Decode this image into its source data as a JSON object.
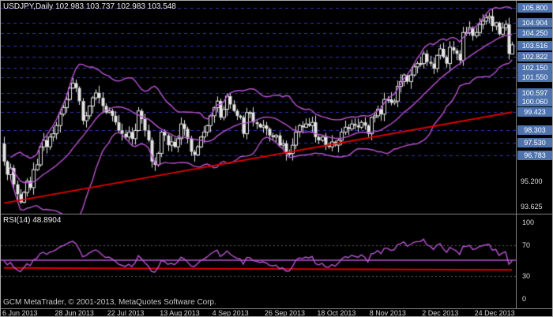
{
  "header": {
    "title": "USDJPY,Daily 102.983 103.737 102.983 103.548"
  },
  "rsi_panel": {
    "label": "RSI(14) 48.8904"
  },
  "footer": {
    "copyright": "GCM MetaTrader, © 2001-2013, MetaQuotes Software Corp."
  },
  "colors": {
    "background": "#000000",
    "text": "#ffffff",
    "candle": "#e6e6e6",
    "bands": "#ba55d3",
    "trendline": "#dd0000",
    "levels": "#3333ae",
    "badge": "#4f74ad",
    "separator": "#808080",
    "rsi_line": "#ba55d3",
    "rsi_red_line": "#dd0000",
    "rsi_levels": "#5a5a5a"
  },
  "price_axis": {
    "badges": [
      {
        "label": "105.800",
        "value": 105.8
      },
      {
        "label": "104.904",
        "value": 104.904
      },
      {
        "label": "104.250",
        "value": 104.25
      },
      {
        "label": "103.516",
        "value": 103.516
      },
      {
        "label": "102.822",
        "value": 102.822
      },
      {
        "label": "102.150",
        "value": 102.15
      },
      {
        "label": "101.550",
        "value": 101.55
      },
      {
        "label": "100.597",
        "value": 100.597
      },
      {
        "label": "100.060",
        "value": 100.06
      },
      {
        "label": "99.423",
        "value": 99.423
      },
      {
        "label": "98.303",
        "value": 98.303
      },
      {
        "label": "97.530",
        "value": 97.53
      },
      {
        "label": "96.783",
        "value": 96.783
      }
    ],
    "plain_ticks": [
      {
        "label": "95.200",
        "value": 95.2
      },
      {
        "label": "93.625",
        "value": 93.625
      }
    ]
  },
  "rsi_axis": {
    "ticks": [
      {
        "label": "100",
        "value": 100
      },
      {
        "label": "70",
        "value": 70
      },
      {
        "label": "30",
        "value": 30
      },
      {
        "label": "0",
        "value": 0
      }
    ]
  },
  "date_axis": {
    "labels": [
      {
        "label": "6 Jun 2013",
        "index": 0
      },
      {
        "label": "28 Jun 2013",
        "index": 16
      },
      {
        "label": "22 Jul 2013",
        "index": 32
      },
      {
        "label": "13 Aug 2013",
        "index": 48
      },
      {
        "label": "4 Sep 2013",
        "index": 64
      },
      {
        "label": "26 Sep 2013",
        "index": 80
      },
      {
        "label": "18 Oct 2013",
        "index": 96
      },
      {
        "label": "8 Nov 2013",
        "index": 112
      },
      {
        "label": "2 Dec 2013",
        "index": 128
      },
      {
        "label": "24 Dec 2013",
        "index": 144
      }
    ]
  },
  "chart_data": {
    "type": "candlestick",
    "symbol": "USDJPY",
    "timeframe": "Daily",
    "title": "USDJPY,Daily",
    "current_bar": {
      "open": 102.983,
      "high": 103.737,
      "low": 102.983,
      "close": 103.548
    },
    "first_open": 97.5,
    "bars_per_tick": 16,
    "x_tick_labels": [
      "6 Jun 2013",
      "28 Jun 2013",
      "22 Jul 2013",
      "13 Aug 2013",
      "4 Sep 2013",
      "26 Sep 2013",
      "18 Oct 2013",
      "8 Nov 2013",
      "2 Dec 2013",
      "24 Dec 2013"
    ],
    "price_range": {
      "top": 106.15,
      "bottom": 93.3
    },
    "closes": [
      96.4,
      95.6,
      96.0,
      95.0,
      94.4,
      93.9,
      94.5,
      95.2,
      94.8,
      95.9,
      96.2,
      97.3,
      97.7,
      97.3,
      97.9,
      98.1,
      98.6,
      99.3,
      99.7,
      100.2,
      100.9,
      101.2,
      100.9,
      100.1,
      98.9,
      99.2,
      99.8,
      100.3,
      100.6,
      100.3,
      99.8,
      99.4,
      99.5,
      99.2,
      98.8,
      98.3,
      98.1,
      97.9,
      98.2,
      97.8,
      98.3,
      99.5,
      99.0,
      98.3,
      97.7,
      96.4,
      96.2,
      96.9,
      98.2,
      98.0,
      97.4,
      97.6,
      97.3,
      97.8,
      98.7,
      98.4,
      97.8,
      97.0,
      96.8,
      97.3,
      97.9,
      98.2,
      98.6,
      99.2,
      99.7,
      100.1,
      99.1,
      99.6,
      100.4,
      99.9,
      99.5,
      99.2,
      99.1,
      98.1,
      99.4,
      99.4,
      98.8,
      98.7,
      98.5,
      98.6,
      98.4,
      98.0,
      97.9,
      98.0,
      97.4,
      97.5,
      96.9,
      96.9,
      97.4,
      98.2,
      98.6,
      98.5,
      98.7,
      98.6,
      98.8,
      97.9,
      97.7,
      97.9,
      97.4,
      97.3,
      97.6,
      97.4,
      97.7,
      98.2,
      98.5,
      98.4,
      98.7,
      98.6,
      98.5,
      98.8,
      98.6,
      98.1,
      99.1,
      99.2,
      99.6,
      99.3,
      100.2,
      100.2,
      100.0,
      100.1,
      101.0,
      101.3,
      101.7,
      101.3,
      101.7,
      102.2,
      102.4,
      102.4,
      103.0,
      102.5,
      102.4,
      102.1,
      102.9,
      103.3,
      102.8,
      102.4,
      103.4,
      103.2,
      103.0,
      102.6,
      104.3,
      104.3,
      104.6,
      104.1,
      104.3,
      104.8,
      105.0,
      105.2,
      105.3,
      104.7,
      104.9,
      104.2,
      104.6,
      104.8,
      103.0,
      103.548
    ],
    "horizontal_levels": [
      105.8,
      104.904,
      104.25,
      103.516,
      102.822,
      102.15,
      101.55,
      100.597,
      100.06,
      99.423,
      98.303,
      97.53,
      96.783
    ],
    "trendline": {
      "from_index": 0,
      "from_price": 93.85,
      "to_index": 155,
      "to_price": 99.42
    },
    "bollinger_bands": {
      "period": 20,
      "deviation": 2
    },
    "indicator": {
      "name": "RSI",
      "period": 14,
      "current": 48.8904,
      "range": [
        0,
        100
      ],
      "levels": [
        70,
        30
      ],
      "horizontal_line": 50.5,
      "red_trendline": {
        "from_index": 0,
        "from_value": 40.5,
        "to_index": 155,
        "to_value": 38.0
      }
    }
  }
}
